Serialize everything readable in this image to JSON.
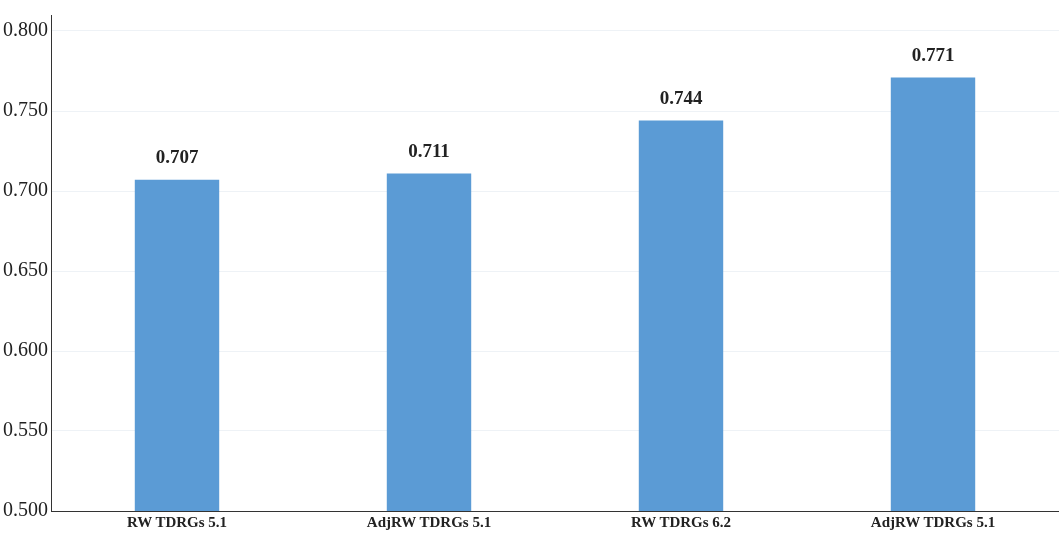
{
  "chart_data": {
    "type": "bar",
    "categories": [
      "RW TDRGs 5.1",
      "AdjRW TDRGs 5.1",
      "RW TDRGs 6.2",
      "AdjRW TDRGs 5.1"
    ],
    "values": [
      0.707,
      0.711,
      0.744,
      0.771
    ],
    "color": "#5b9bd5",
    "ylim": [
      0.5,
      0.81
    ],
    "yticks": [
      {
        "value": 0.5,
        "label": "0.500"
      },
      {
        "value": 0.55,
        "label": "0.550"
      },
      {
        "value": 0.6,
        "label": "0.600"
      },
      {
        "value": 0.65,
        "label": "0.650"
      },
      {
        "value": 0.7,
        "label": "0.700"
      },
      {
        "value": 0.75,
        "label": "0.750"
      },
      {
        "value": 0.8,
        "label": "0.800"
      }
    ],
    "grid": "y",
    "legend": false,
    "data_labels": true
  }
}
